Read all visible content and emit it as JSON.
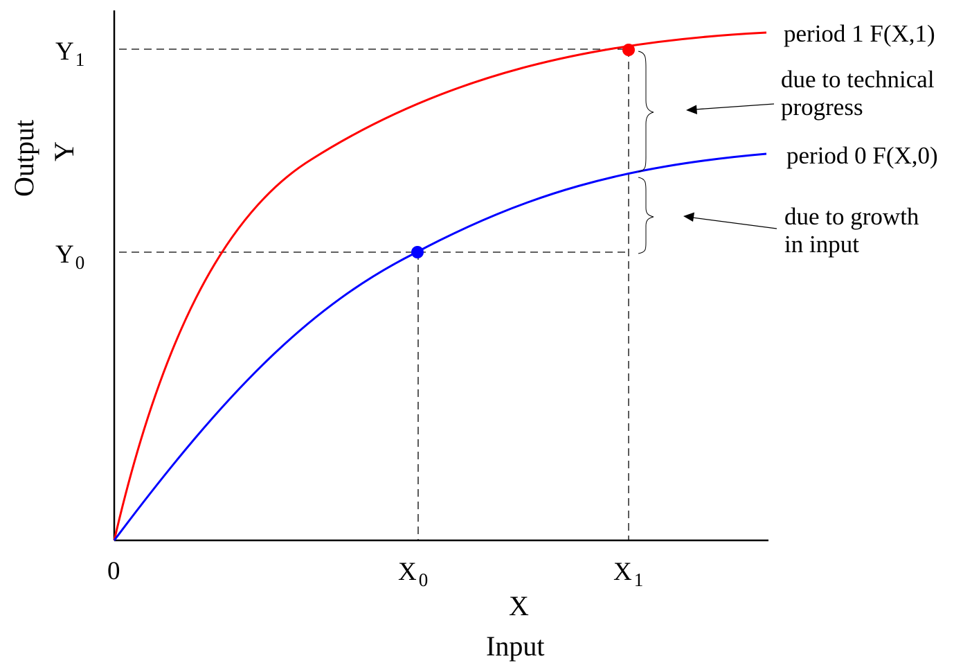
{
  "colors": {
    "period1_curve": "#ff0000",
    "period0_curve": "#0000ff",
    "axes": "#000000",
    "guides": "#000000"
  },
  "axes": {
    "origin_label": "0",
    "x_var": "X",
    "x_name": "Input",
    "y_var": "Y",
    "y_name": "Output"
  },
  "ticks": {
    "x0": {
      "base": "X",
      "sub": "0"
    },
    "x1": {
      "base": "X",
      "sub": "1"
    },
    "y0": {
      "base": "Y",
      "sub": "0"
    },
    "y1": {
      "base": "Y",
      "sub": "1"
    }
  },
  "curves": [
    {
      "label": "period 1 F(X,1)",
      "color": "#ff0000"
    },
    {
      "label": "period 0 F(X,0)",
      "color": "#0000ff"
    }
  ],
  "annotations": {
    "technical": [
      "due to technical",
      "progress"
    ],
    "growth": [
      "due to growth",
      "in input"
    ]
  }
}
